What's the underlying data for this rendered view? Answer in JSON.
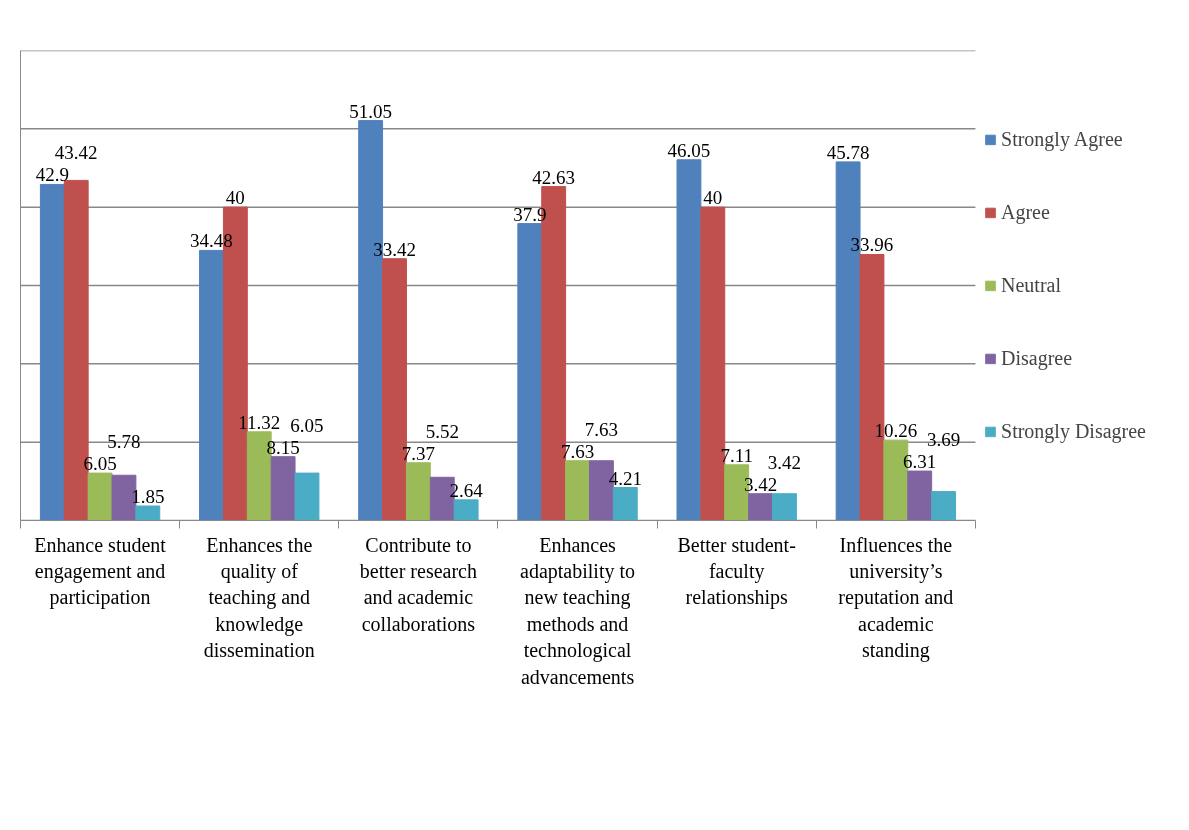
{
  "chart_data": {
    "type": "bar",
    "categories": [
      "Enhance student engagement and participation",
      "Enhances the quality of teaching and knowledge dissemination",
      "Contribute to better research and academic collaborations",
      "Enhances adaptability to new teaching methods and technological advancements",
      "Better student-faculty relationships",
      "Influences the university’s reputation and academic standing"
    ],
    "series": [
      {
        "name": "Strongly Agree",
        "color": "#4f81bd",
        "values": [
          42.9,
          34.48,
          51.05,
          37.9,
          46.05,
          45.78
        ]
      },
      {
        "name": "Agree",
        "color": "#c0504d",
        "values": [
          43.42,
          40,
          33.42,
          42.63,
          40,
          33.96
        ]
      },
      {
        "name": "Neutral",
        "color": "#9bbb59",
        "values": [
          6.05,
          11.32,
          7.37,
          7.63,
          7.11,
          10.26
        ]
      },
      {
        "name": "Disagree",
        "color": "#8064a2",
        "values": [
          5.78,
          8.15,
          5.52,
          7.63,
          3.42,
          6.31
        ]
      },
      {
        "name": "Strongly Disagree",
        "color": "#4bacc6",
        "values": [
          1.85,
          6.05,
          2.64,
          4.21,
          3.42,
          3.69
        ]
      }
    ],
    "ylim": [
      0,
      60
    ],
    "yticks": [
      {
        "value": 0,
        "label": null
      },
      {
        "value": 10,
        "label": null
      },
      {
        "value": 20,
        "label": null
      },
      {
        "value": 30,
        "label": null
      },
      {
        "value": 40,
        "label": null
      },
      {
        "value": 50,
        "label": null
      },
      {
        "value": 60,
        "label": null
      }
    ],
    "tick_labels": "x",
    "grid": "y",
    "legend": "right",
    "data_labels": true
  }
}
